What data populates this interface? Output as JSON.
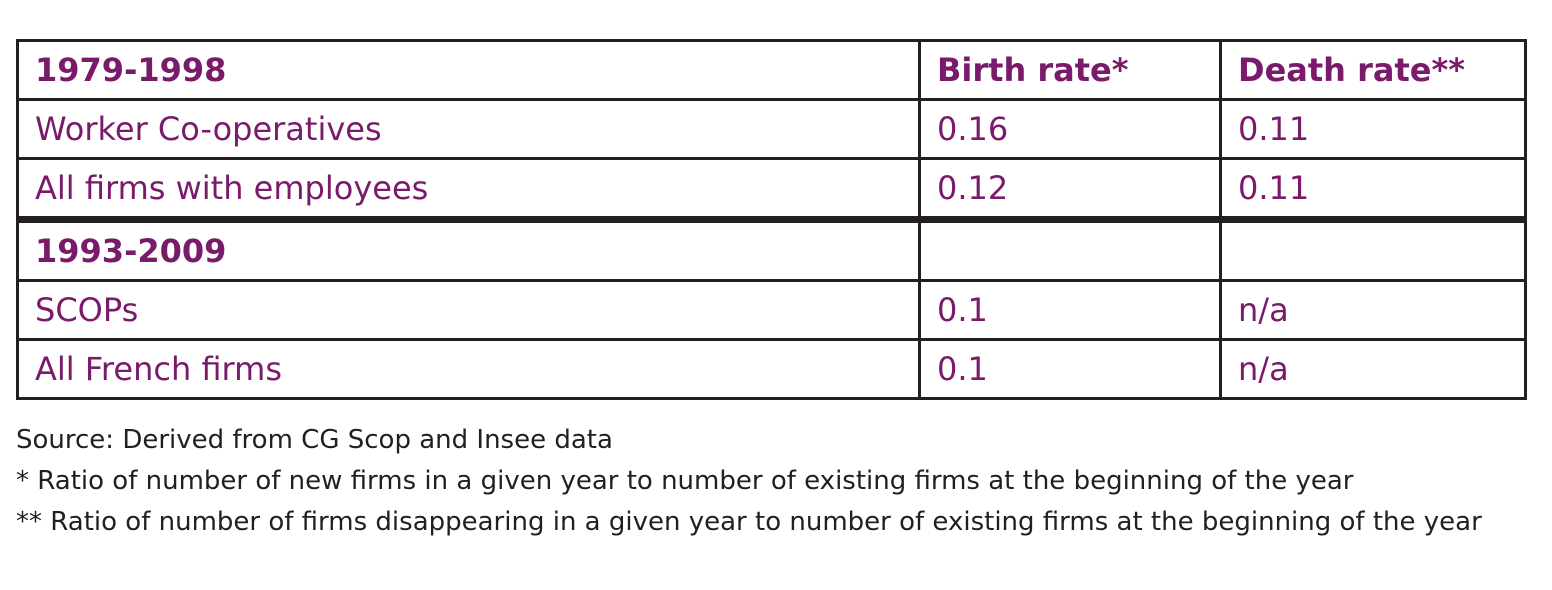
{
  "table": {
    "rows": [
      {
        "kind": "header",
        "label": "1979-1998",
        "birth": "Birth rate*",
        "death": "Death rate**"
      },
      {
        "kind": "data",
        "label": "Worker Co-operatives",
        "birth": "0.16",
        "death": "0.11"
      },
      {
        "kind": "data",
        "label": "All firms with employees",
        "birth": "0.12",
        "death": "0.11"
      },
      {
        "kind": "header",
        "label": "1993-2009",
        "birth": "",
        "death": ""
      },
      {
        "kind": "data",
        "label": "SCOPs",
        "birth": "0.1",
        "death": "n/a"
      },
      {
        "kind": "data",
        "label": "All French firms",
        "birth": "0.1",
        "death": "n/a"
      }
    ]
  },
  "notes": {
    "source": "Source: Derived from CG Scop and Insee data",
    "footnote_birth": "* Ratio of number of new firms in a given year to number of existing firms at the beginning of the year",
    "footnote_death": "** Ratio of number of firms disappearing in a given year to number of existing firms at the beginning of the year"
  },
  "colors": {
    "text_accent": "#7a1a6a",
    "border": "#231f20",
    "note_text": "#231f20"
  }
}
